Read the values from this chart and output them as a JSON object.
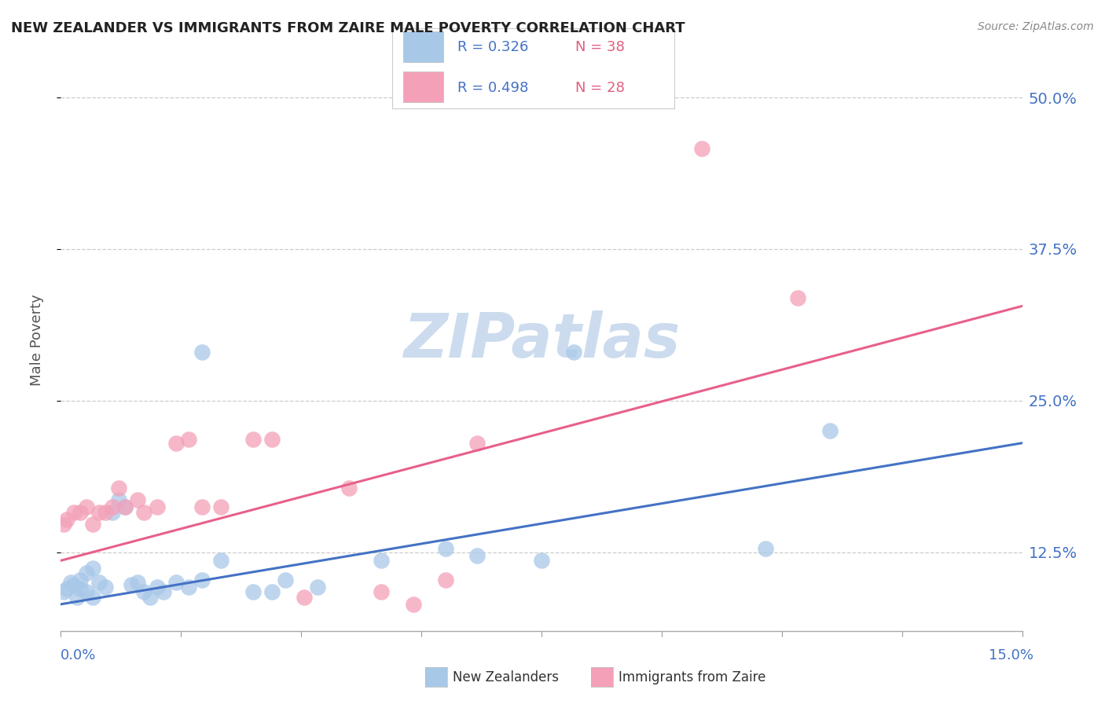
{
  "title": "NEW ZEALANDER VS IMMIGRANTS FROM ZAIRE MALE POVERTY CORRELATION CHART",
  "source": "Source: ZipAtlas.com",
  "ylabel": "Male Poverty",
  "ytick_values": [
    0.125,
    0.25,
    0.375,
    0.5
  ],
  "ytick_labels": [
    "12.5%",
    "25.0%",
    "37.5%",
    "50.0%"
  ],
  "xmin": 0.0,
  "xmax": 0.15,
  "ymin": 0.06,
  "ymax": 0.54,
  "nz_R": "0.326",
  "nz_N": "38",
  "zaire_R": "0.498",
  "zaire_N": "28",
  "nz_color": "#a8c8e8",
  "zaire_color": "#f4a0b8",
  "nz_line_color": "#4472c4",
  "zaire_line_color": "#e8608a",
  "watermark_color": "#ccdcee",
  "nz_scatter_x": [
    0.0005,
    0.001,
    0.0015,
    0.002,
    0.0025,
    0.003,
    0.003,
    0.004,
    0.004,
    0.005,
    0.005,
    0.006,
    0.007,
    0.008,
    0.009,
    0.01,
    0.011,
    0.012,
    0.013,
    0.014,
    0.015,
    0.016,
    0.018,
    0.02,
    0.022,
    0.022,
    0.025,
    0.03,
    0.033,
    0.035,
    0.04,
    0.05,
    0.06,
    0.065,
    0.075,
    0.08,
    0.11,
    0.12
  ],
  "nz_scatter_y": [
    0.092,
    0.095,
    0.1,
    0.098,
    0.088,
    0.102,
    0.095,
    0.108,
    0.092,
    0.112,
    0.088,
    0.1,
    0.096,
    0.158,
    0.168,
    0.162,
    0.098,
    0.1,
    0.092,
    0.088,
    0.096,
    0.092,
    0.1,
    0.096,
    0.102,
    0.29,
    0.118,
    0.092,
    0.092,
    0.102,
    0.096,
    0.118,
    0.128,
    0.122,
    0.118,
    0.29,
    0.128,
    0.225
  ],
  "zaire_scatter_x": [
    0.0005,
    0.001,
    0.002,
    0.003,
    0.004,
    0.005,
    0.006,
    0.007,
    0.008,
    0.009,
    0.01,
    0.012,
    0.013,
    0.015,
    0.018,
    0.02,
    0.022,
    0.025,
    0.03,
    0.033,
    0.038,
    0.045,
    0.05,
    0.055,
    0.06,
    0.065,
    0.1,
    0.115
  ],
  "zaire_scatter_y": [
    0.148,
    0.152,
    0.158,
    0.158,
    0.162,
    0.148,
    0.158,
    0.158,
    0.162,
    0.178,
    0.162,
    0.168,
    0.158,
    0.162,
    0.215,
    0.218,
    0.162,
    0.162,
    0.218,
    0.218,
    0.088,
    0.178,
    0.092,
    0.082,
    0.102,
    0.215,
    0.458,
    0.335
  ],
  "nz_trendline_x": [
    0.0,
    0.15
  ],
  "nz_trendline_y": [
    0.082,
    0.215
  ],
  "zaire_trendline_x": [
    0.0,
    0.15
  ],
  "zaire_trendline_y": [
    0.118,
    0.328
  ]
}
